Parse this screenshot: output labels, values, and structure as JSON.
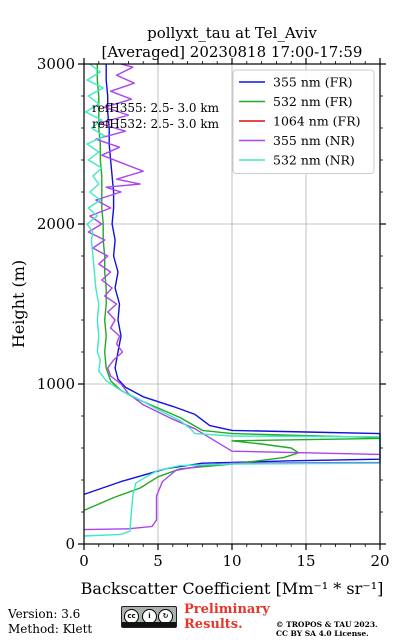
{
  "chart_data": {
    "type": "line",
    "title": "pollyxt_tau at Tel_Aviv",
    "subtitle": "[Averaged] 20230818 17:00-17:59",
    "xlabel": "Backscatter Coefficient [Mm⁻¹ * sr⁻¹]",
    "ylabel": "Height (m)",
    "xlim": [
      0,
      20
    ],
    "ylim": [
      0,
      3000
    ],
    "xticks": [
      "0",
      "5",
      "10",
      "15",
      "20"
    ],
    "yticks": [
      "0",
      "1000",
      "2000",
      "3000"
    ],
    "grid": true,
    "legend_position": "upper-right",
    "annotations": [
      "refH355:  2.5- 3.0 km",
      "refH532:  2.5- 3.0 km"
    ],
    "series": [
      {
        "name": "355 nm (FR)",
        "color": "#1111dd",
        "points": [
          [
            0,
            310
          ],
          [
            2.5,
            390
          ],
          [
            5.5,
            470
          ],
          [
            8,
            505
          ],
          [
            14,
            520
          ],
          [
            20,
            530
          ],
          [
            20,
            690
          ],
          [
            15,
            700
          ],
          [
            10,
            710
          ],
          [
            8.5,
            740
          ],
          [
            7.5,
            810
          ],
          [
            6,
            860
          ],
          [
            4,
            920
          ],
          [
            2.8,
            980
          ],
          [
            2.3,
            1030
          ],
          [
            2.1,
            1100
          ],
          [
            2.3,
            1200
          ],
          [
            2.5,
            1300
          ],
          [
            2.3,
            1400
          ],
          [
            2.4,
            1500
          ],
          [
            2.1,
            1600
          ],
          [
            2.3,
            1700
          ],
          [
            2.0,
            1800
          ],
          [
            2.1,
            1900
          ],
          [
            1.9,
            2000
          ],
          [
            2.0,
            2100
          ],
          [
            2.0,
            2200
          ],
          [
            1.9,
            2300
          ],
          [
            1.8,
            2400
          ],
          [
            1.7,
            2500
          ],
          [
            1.7,
            2600
          ],
          [
            1.6,
            2700
          ],
          [
            1.6,
            2800
          ],
          [
            1.5,
            2900
          ],
          [
            1.5,
            3000
          ]
        ]
      },
      {
        "name": "532 nm (FR)",
        "color": "#22aa22",
        "points": [
          [
            0,
            210
          ],
          [
            2,
            290
          ],
          [
            3.8,
            350
          ],
          [
            5,
            420
          ],
          [
            6.5,
            470
          ],
          [
            10,
            500
          ],
          [
            13.5,
            540
          ],
          [
            14.5,
            570
          ],
          [
            14,
            600
          ],
          [
            12,
            625
          ],
          [
            10,
            645
          ],
          [
            20,
            660
          ],
          [
            20,
            665
          ],
          [
            10,
            690
          ],
          [
            8,
            710
          ],
          [
            6.5,
            790
          ],
          [
            5,
            850
          ],
          [
            3.5,
            910
          ],
          [
            2.5,
            960
          ],
          [
            1.8,
            1020
          ],
          [
            1.5,
            1100
          ],
          [
            1.4,
            1200
          ],
          [
            1.5,
            1300
          ],
          [
            1.4,
            1400
          ],
          [
            1.5,
            1500
          ],
          [
            1.5,
            1600
          ],
          [
            1.4,
            1700
          ],
          [
            1.4,
            1800
          ],
          [
            1.3,
            1900
          ],
          [
            1.3,
            2000
          ],
          [
            1.2,
            2100
          ],
          [
            1.2,
            2200
          ],
          [
            1.2,
            2300
          ],
          [
            1.1,
            2400
          ],
          [
            1.1,
            2500
          ],
          [
            1.0,
            2600
          ],
          [
            1.0,
            2700
          ],
          [
            1.0,
            2800
          ],
          [
            0.9,
            2900
          ],
          [
            0.9,
            3000
          ]
        ]
      },
      {
        "name": "1064 nm (FR)",
        "color": "#dd1111",
        "points": []
      },
      {
        "name": "355 nm (NR)",
        "color": "#aa44ee",
        "points": [
          [
            0,
            90
          ],
          [
            3,
            95
          ],
          [
            4.6,
            110
          ],
          [
            4.9,
            150
          ],
          [
            4.9,
            300
          ],
          [
            5.3,
            390
          ],
          [
            6.2,
            460
          ],
          [
            8,
            490
          ],
          [
            10,
            505
          ],
          [
            20,
            510
          ],
          [
            20,
            560
          ],
          [
            15,
            570
          ],
          [
            10,
            580
          ],
          [
            7.5,
            720
          ],
          [
            6,
            780
          ],
          [
            4,
            870
          ],
          [
            3,
            940
          ],
          [
            2.5,
            1000
          ],
          [
            1.8,
            1050
          ],
          [
            1.6,
            1100
          ],
          [
            2.0,
            1150
          ],
          [
            2.6,
            1200
          ],
          [
            2.2,
            1250
          ],
          [
            2.4,
            1300
          ],
          [
            1.8,
            1350
          ],
          [
            2.1,
            1400
          ],
          [
            1.6,
            1450
          ],
          [
            2.2,
            1500
          ],
          [
            1.4,
            1550
          ],
          [
            1.9,
            1600
          ],
          [
            1.2,
            1650
          ],
          [
            1.8,
            1700
          ],
          [
            1.0,
            1750
          ],
          [
            1.6,
            1800
          ],
          [
            0.6,
            1850
          ],
          [
            1.4,
            1900
          ],
          [
            0.3,
            1950
          ],
          [
            1.2,
            2000
          ],
          [
            0.4,
            2050
          ],
          [
            1.8,
            2100
          ],
          [
            0.8,
            2150
          ],
          [
            2.5,
            2200
          ],
          [
            1.5,
            2230
          ],
          [
            3.8,
            2250
          ],
          [
            2.2,
            2280
          ],
          [
            4.0,
            2330
          ],
          [
            2.6,
            2380
          ],
          [
            1.2,
            2430
          ],
          [
            2.4,
            2480
          ],
          [
            0.8,
            2530
          ],
          [
            2.8,
            2580
          ],
          [
            1.0,
            2630
          ],
          [
            3.0,
            2680
          ],
          [
            1.4,
            2730
          ],
          [
            3.2,
            2780
          ],
          [
            1.8,
            2830
          ],
          [
            3.4,
            2880
          ],
          [
            2.2,
            2930
          ],
          [
            3.3,
            2980
          ],
          [
            2.5,
            3000
          ]
        ]
      },
      {
        "name": "532 nm (NR)",
        "color": "#3ee8c8",
        "points": [
          [
            0,
            50
          ],
          [
            2.5,
            60
          ],
          [
            3.1,
            80
          ],
          [
            3.2,
            200
          ],
          [
            3.3,
            300
          ],
          [
            3.5,
            380
          ],
          [
            4.2,
            420
          ],
          [
            5,
            460
          ],
          [
            6.5,
            490
          ],
          [
            10,
            500
          ],
          [
            20,
            505
          ],
          [
            20,
            670
          ],
          [
            10,
            675
          ],
          [
            7.5,
            690
          ],
          [
            7.2,
            720
          ],
          [
            6.5,
            770
          ],
          [
            5,
            840
          ],
          [
            3.8,
            900
          ],
          [
            2.5,
            960
          ],
          [
            1.5,
            1020
          ],
          [
            1.0,
            1080
          ],
          [
            1.1,
            1150
          ],
          [
            0.9,
            1200
          ],
          [
            1.0,
            1300
          ],
          [
            0.9,
            1400
          ],
          [
            1.0,
            1500
          ],
          [
            0.8,
            1600
          ],
          [
            0.7,
            1700
          ],
          [
            0.6,
            1800
          ],
          [
            0.5,
            1900
          ],
          [
            0.6,
            1950
          ],
          [
            0.2,
            2000
          ],
          [
            0.9,
            2050
          ],
          [
            0.3,
            2100
          ],
          [
            1.1,
            2150
          ],
          [
            0.4,
            2200
          ],
          [
            1.0,
            2250
          ],
          [
            0.6,
            2300
          ],
          [
            1.2,
            2350
          ],
          [
            0.3,
            2400
          ],
          [
            1.0,
            2450
          ],
          [
            0.2,
            2500
          ],
          [
            1.4,
            2550
          ],
          [
            0.5,
            2600
          ],
          [
            1.2,
            2650
          ],
          [
            0.1,
            2700
          ],
          [
            1.0,
            2750
          ],
          [
            0.3,
            2800
          ],
          [
            1.3,
            2850
          ],
          [
            0.2,
            2900
          ],
          [
            1.1,
            2950
          ],
          [
            0.4,
            3000
          ]
        ]
      }
    ]
  },
  "footer": {
    "version": "Version: 3.6",
    "method": "Method: Klett",
    "preliminary_line1": "Preliminary",
    "preliminary_line2": "Results.",
    "license_line1": "© TROPOS & TAU 2023.",
    "license_line2": "CC BY SA 4.0 License.",
    "cc_label": "BY SA",
    "cc_icon": "cc-by-sa-badge-icon"
  }
}
